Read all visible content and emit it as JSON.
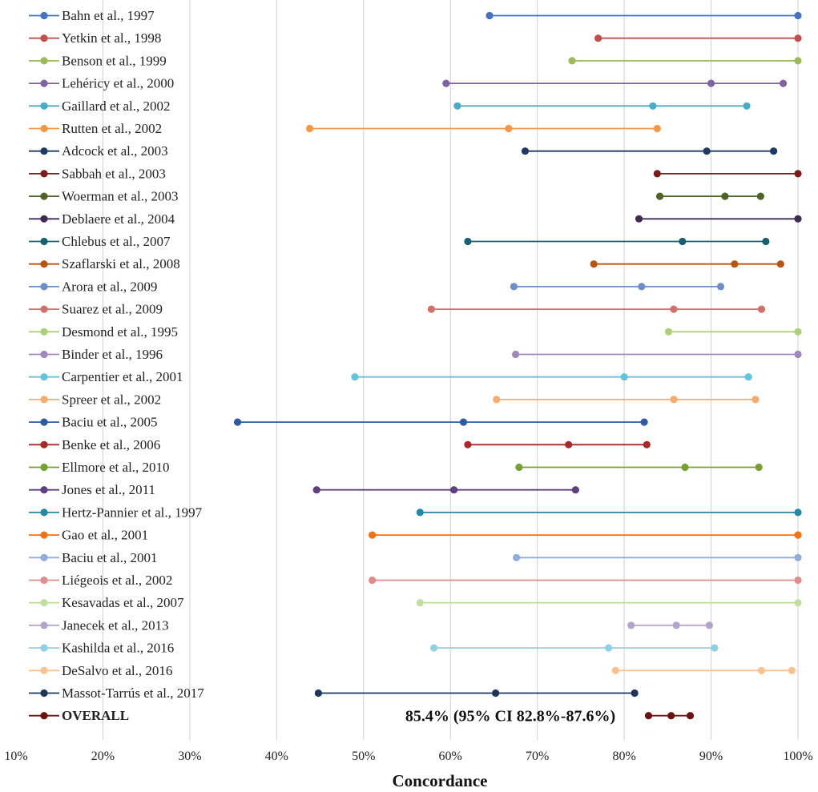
{
  "chart_data": {
    "type": "forest-range",
    "xlabel": "Concordance",
    "xlim": [
      10,
      100
    ],
    "x_ticks": [
      "10%",
      "20%",
      "30%",
      "40%",
      "50%",
      "60%",
      "70%",
      "80%",
      "90%",
      "100%"
    ],
    "gridlines": true,
    "series": [
      {
        "name": "Bahn et al., 1997",
        "color": "#4472c4",
        "points": [
          64.5,
          100
        ]
      },
      {
        "name": "Yetkin et al., 1998",
        "color": "#c0504d",
        "points": [
          77,
          100
        ]
      },
      {
        "name": "Benson et al., 1999",
        "color": "#9bbb59",
        "points": [
          74,
          100
        ]
      },
      {
        "name": "Lehéricy et al., 2000",
        "color": "#8064a2",
        "points": [
          59.5,
          90,
          98.3
        ]
      },
      {
        "name": "Gaillard et al., 2002",
        "color": "#4bacc6",
        "points": [
          60.8,
          83.3,
          94.1
        ]
      },
      {
        "name": "Rutten et al., 2002",
        "color": "#f79646",
        "points": [
          43.8,
          66.7,
          83.8
        ]
      },
      {
        "name": "Adcock et al., 2003",
        "color": "#1f3864",
        "points": [
          68.6,
          89.5,
          97.2
        ]
      },
      {
        "name": "Sabbah et al., 2003",
        "color": "#7b1c1c",
        "points": [
          83.8,
          100
        ]
      },
      {
        "name": "Woerman et al., 2003",
        "color": "#4f6228",
        "points": [
          84.1,
          91.6,
          95.7
        ]
      },
      {
        "name": "Deblaere et al., 2004",
        "color": "#3f2a52",
        "points": [
          81.7,
          100
        ]
      },
      {
        "name": "Chlebus et al., 2007",
        "color": "#17606d",
        "points": [
          62,
          86.7,
          96.3
        ]
      },
      {
        "name": "Szaflarski et al., 2008",
        "color": "#b85412",
        "points": [
          76.5,
          92.7,
          98
        ]
      },
      {
        "name": "Arora et al., 2009",
        "color": "#6b8ec9",
        "points": [
          67.3,
          82,
          91.1
        ]
      },
      {
        "name": "Suarez et al., 2009",
        "color": "#d26f6c",
        "points": [
          57.8,
          85.7,
          95.8
        ]
      },
      {
        "name": "Desmond et al., 1995",
        "color": "#aecf7a",
        "points": [
          85.1,
          100
        ]
      },
      {
        "name": "Binder et al., 1996",
        "color": "#9f88bd",
        "points": [
          67.5,
          100
        ]
      },
      {
        "name": "Carpentier et al., 2001",
        "color": "#62c3dc",
        "points": [
          49,
          80,
          94.3
        ]
      },
      {
        "name": "Spreer et al., 2002",
        "color": "#f8ab6d",
        "points": [
          65.3,
          85.7,
          95.1
        ]
      },
      {
        "name": "Baciu et al., 2005",
        "color": "#2e5aa0",
        "points": [
          35.5,
          61.5,
          82.3
        ]
      },
      {
        "name": "Benke et al., 2006",
        "color": "#a52b2b",
        "points": [
          62,
          73.6,
          82.6
        ]
      },
      {
        "name": "Ellmore et al., 2010",
        "color": "#76a036",
        "points": [
          67.9,
          87,
          95.5
        ]
      },
      {
        "name": "Jones et al., 2011",
        "color": "#5d3f82",
        "points": [
          44.6,
          60.4,
          74.4
        ]
      },
      {
        "name": "Hertz-Pannier et al., 1997",
        "color": "#2288a3",
        "points": [
          56.5,
          100
        ]
      },
      {
        "name": "Gao et al., 2001",
        "color": "#f07116",
        "points": [
          51,
          100
        ]
      },
      {
        "name": "Baciu et al., 2001",
        "color": "#92acd8",
        "points": [
          67.6,
          100
        ]
      },
      {
        "name": "Liégeois et al., 2002",
        "color": "#dc8e8c",
        "points": [
          51,
          100
        ]
      },
      {
        "name": "Kesavadas et al., 2007",
        "color": "#c3dca0",
        "points": [
          56.5,
          100
        ]
      },
      {
        "name": "Janecek et al., 2013",
        "color": "#b3a2cc",
        "points": [
          80.8,
          86,
          89.8
        ]
      },
      {
        "name": "Kashilda et al., 2016",
        "color": "#8fd1e3",
        "points": [
          58.1,
          78.2,
          90.4
        ]
      },
      {
        "name": "DeSalvo et al., 2016",
        "color": "#fac290",
        "points": [
          79,
          95.8,
          99.3
        ]
      },
      {
        "name": "Massot-Tarrús et al., 2017",
        "color": "#1d3557",
        "points": [
          44.8,
          65.2,
          81.2
        ]
      },
      {
        "name": "OVERALL",
        "color": "#6b1212",
        "points": [
          82.8,
          85.4,
          87.6
        ],
        "bold": true
      }
    ],
    "annotations": [
      {
        "text": "85.4% (95% CI 82.8%-87.6%)",
        "series": "OVERALL"
      }
    ]
  }
}
